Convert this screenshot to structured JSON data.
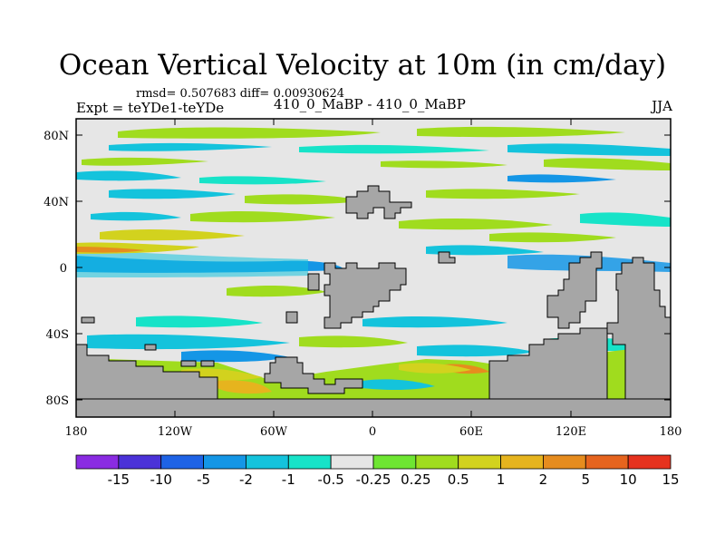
{
  "title": "Ocean Vertical Velocity at 10m (in cm/day)",
  "stats": "rmsd= 0.507683 diff= 0.00930624",
  "left_label": "Expt = teYDe1-teYDe",
  "center_label": "410_0_MaBP - 410_0_MaBP",
  "right_label": "JJA",
  "lat_ticks": [
    "80N",
    "40N",
    "0",
    "40S",
    "80S"
  ],
  "lon_ticks": [
    "180",
    "120W",
    "60W",
    "0",
    "60E",
    "120E",
    "180"
  ],
  "colorbar": {
    "labels": [
      "-15",
      "-10",
      "-5",
      "-2",
      "-1",
      "-0.5",
      "-0.25",
      "0.25",
      "0.5",
      "1",
      "2",
      "5",
      "10",
      "15"
    ],
    "colors": [
      "#8a2be2",
      "#4b32d8",
      "#1e63e6",
      "#1496e6",
      "#14c3dc",
      "#17e3c8",
      "#e6e6e6",
      "#6ee632",
      "#a0dc1e",
      "#d2d21e",
      "#e6b41e",
      "#e68c1e",
      "#e6641e",
      "#e6321e"
    ]
  },
  "colors": {
    "land": "#a6a6a6",
    "ocean_neutral": "#e6e6e6",
    "frame": "#000000"
  }
}
